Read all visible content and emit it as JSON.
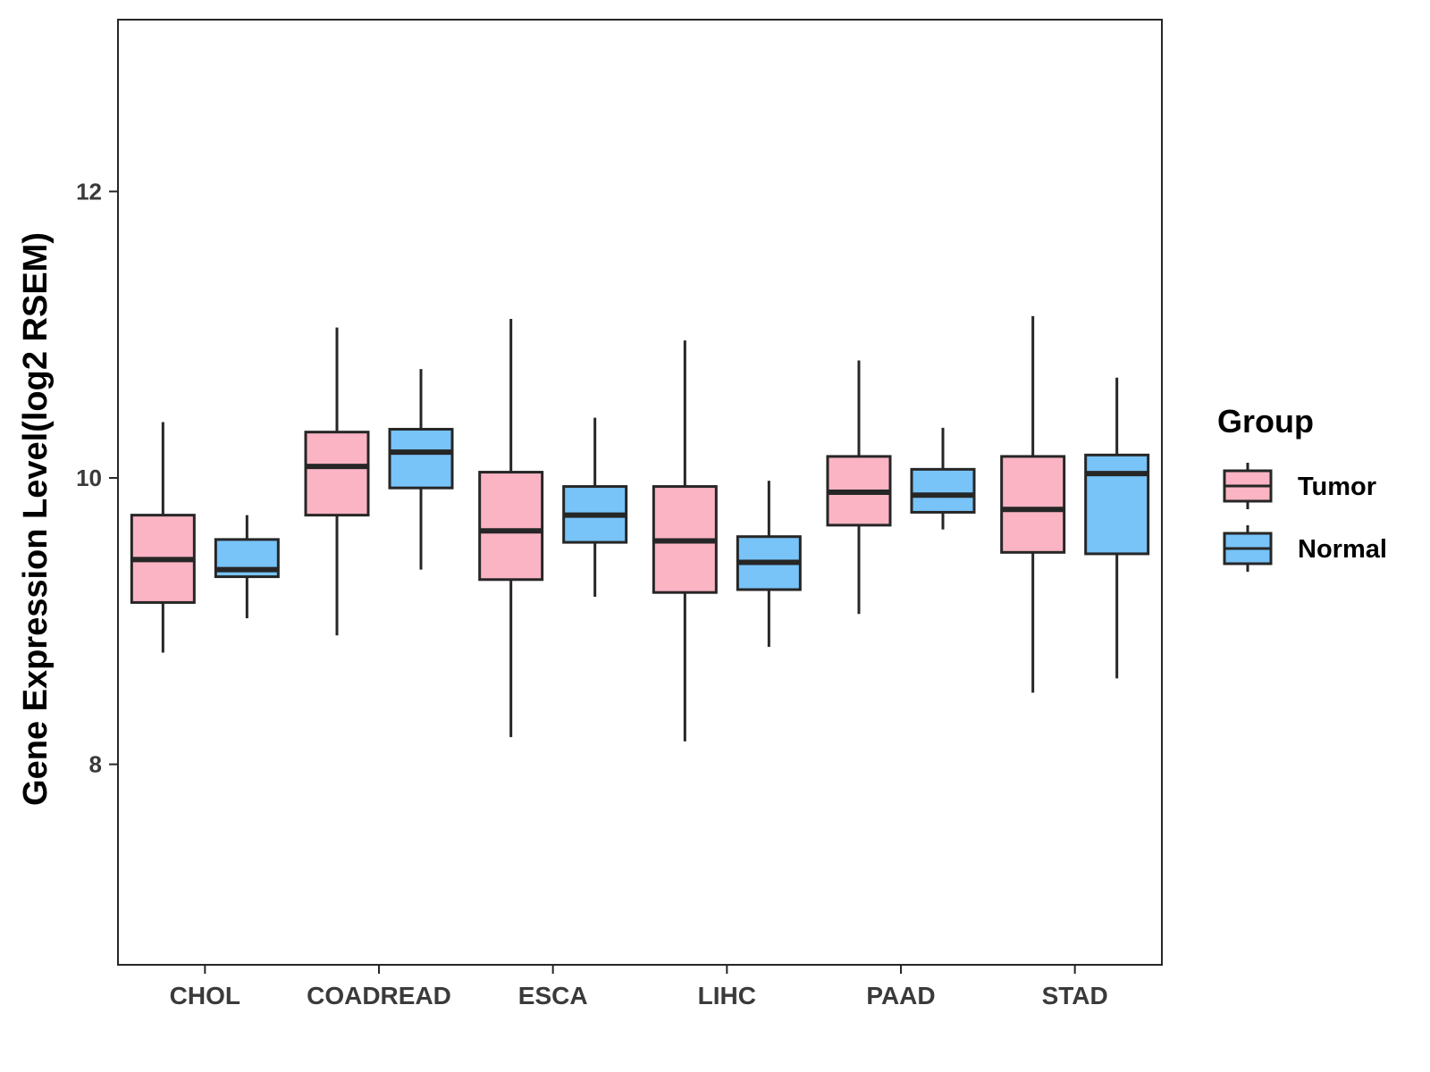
{
  "chart_data": {
    "type": "boxplot",
    "title": "",
    "xlabel": "",
    "ylabel": "Gene Expression Level(log2 RSEM)",
    "ylim": [
      6.6,
      13.2
    ],
    "yticks": [
      8,
      10,
      12
    ],
    "ytick_labels": [
      "8",
      "10",
      "12"
    ],
    "grid": false,
    "categories": [
      "CHOL",
      "COADREAD",
      "ESCA",
      "LIHC",
      "PAAD",
      "STAD"
    ],
    "legend": {
      "title": "Group",
      "position": "right",
      "entries": [
        "Tumor",
        "Normal"
      ]
    },
    "series": [
      {
        "name": "Tumor",
        "color": "#fbb4c4",
        "boxes": [
          {
            "whisker_low": 8.78,
            "q1": 9.13,
            "median": 9.43,
            "q3": 9.74,
            "whisker_high": 10.39
          },
          {
            "whisker_low": 8.9,
            "q1": 9.74,
            "median": 10.08,
            "q3": 10.32,
            "whisker_high": 11.05
          },
          {
            "whisker_low": 8.19,
            "q1": 9.29,
            "median": 9.63,
            "q3": 10.04,
            "whisker_high": 11.11
          },
          {
            "whisker_low": 8.16,
            "q1": 9.2,
            "median": 9.56,
            "q3": 9.94,
            "whisker_high": 10.96
          },
          {
            "whisker_low": 9.05,
            "q1": 9.67,
            "median": 9.9,
            "q3": 10.15,
            "whisker_high": 10.82
          },
          {
            "whisker_low": 8.5,
            "q1": 9.48,
            "median": 9.78,
            "q3": 10.15,
            "whisker_high": 11.13
          }
        ]
      },
      {
        "name": "Normal",
        "color": "#78c3f7",
        "boxes": [
          {
            "whisker_low": 9.02,
            "q1": 9.31,
            "median": 9.36,
            "q3": 9.57,
            "whisker_high": 9.74
          },
          {
            "whisker_low": 9.36,
            "q1": 9.93,
            "median": 10.18,
            "q3": 10.34,
            "whisker_high": 10.76
          },
          {
            "whisker_low": 9.17,
            "q1": 9.55,
            "median": 9.74,
            "q3": 9.94,
            "whisker_high": 10.42
          },
          {
            "whisker_low": 8.82,
            "q1": 9.22,
            "median": 9.41,
            "q3": 9.59,
            "whisker_high": 9.98
          },
          {
            "whisker_low": 9.64,
            "q1": 9.76,
            "median": 9.88,
            "q3": 10.06,
            "whisker_high": 10.35
          },
          {
            "whisker_low": 8.6,
            "q1": 9.47,
            "median": 10.03,
            "q3": 10.16,
            "whisker_high": 10.7
          }
        ]
      }
    ]
  }
}
